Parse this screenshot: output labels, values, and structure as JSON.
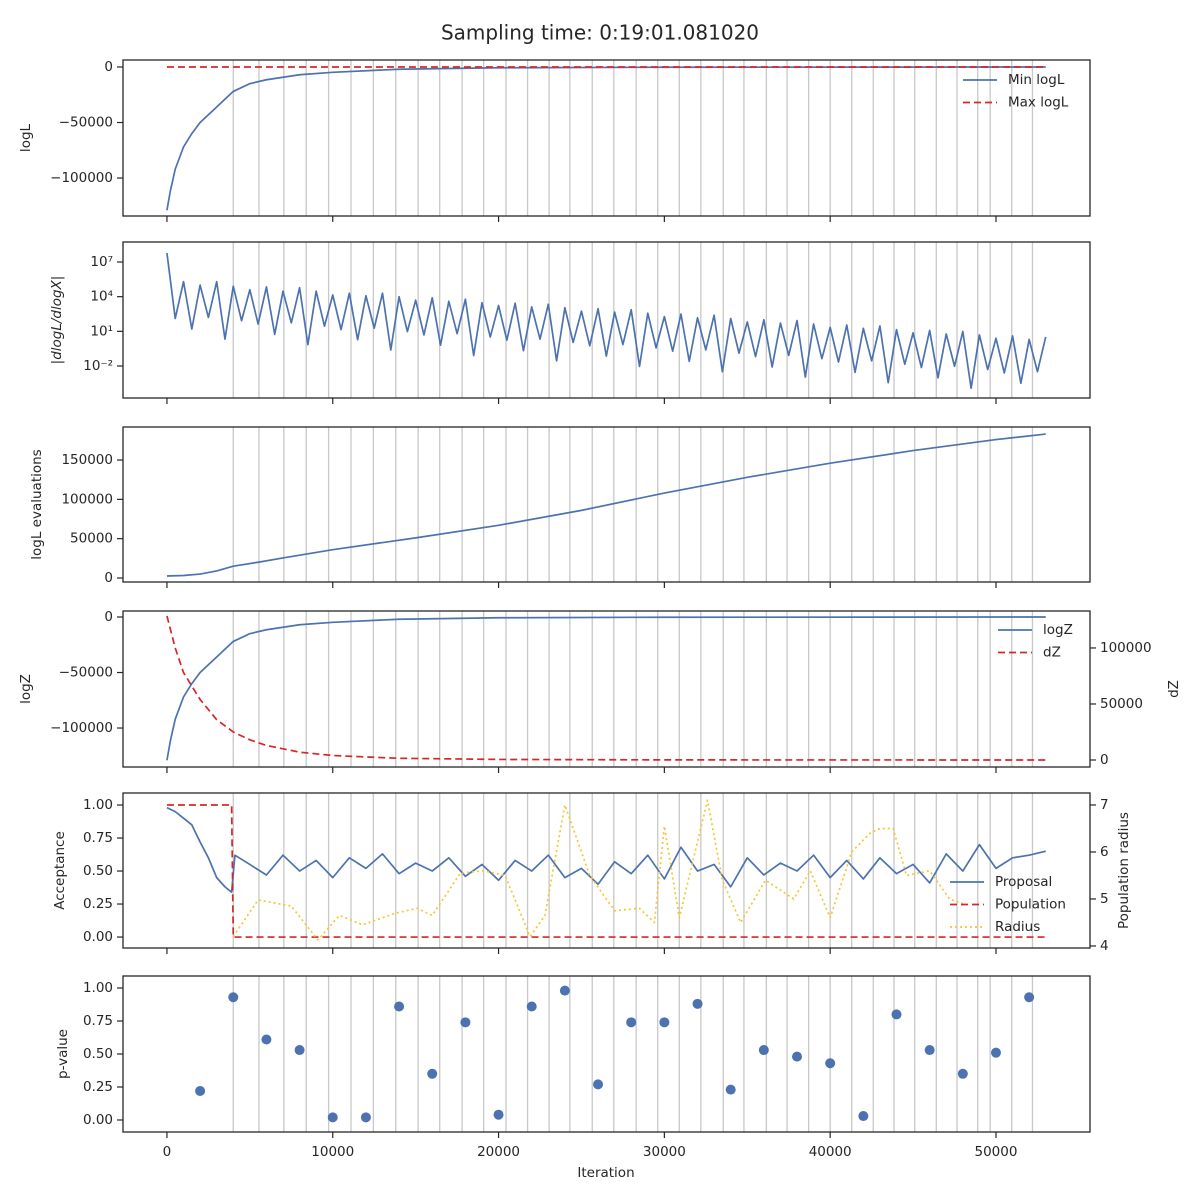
{
  "title": "Sampling time: 0:19:01.081020",
  "xlabel": "Iteration",
  "xlim": [
    -2650,
    55670
  ],
  "xticks": [
    0,
    10000,
    20000,
    30000,
    40000,
    50000
  ],
  "vlines": [
    4000,
    5550,
    7050,
    8400,
    9750,
    11100,
    12450,
    13800,
    15150,
    16450,
    17800,
    19100,
    20450,
    21750,
    23050,
    24300,
    25650,
    26950,
    28300,
    29600,
    30900,
    32200,
    33550,
    34800,
    36150,
    37400,
    38700,
    40000,
    41300,
    42600,
    43850,
    45100,
    46400,
    47650,
    48900,
    49650,
    50950,
    52200
  ],
  "chart_data": [
    {
      "type": "line",
      "ylabel": "logL",
      "ylim": [
        -134200,
        6300
      ],
      "yticks": [
        {
          "value": -100000,
          "label": "−100000"
        },
        {
          "value": -50000,
          "label": "−50000"
        },
        0
      ],
      "legend": "upper right",
      "series": [
        {
          "name": "Min logL",
          "color": "#4c72b0",
          "style": "solid",
          "x": [
            0,
            200,
            500,
            1000,
            1500,
            2000,
            3000,
            4000,
            5000,
            6000,
            8000,
            10000,
            14000,
            20000,
            30000,
            53000
          ],
          "values": [
            -129000,
            -112000,
            -92000,
            -72000,
            -60000,
            -50000,
            -36000,
            -22000,
            -15000,
            -11500,
            -7000,
            -4800,
            -2000,
            -700,
            -200,
            0
          ]
        },
        {
          "name": "Max logL",
          "color": "#d62728",
          "style": "dashed",
          "x": [
            0,
            53000
          ],
          "values": [
            0,
            0
          ]
        }
      ]
    },
    {
      "type": "line",
      "ylabel": "|dlogL/dlogX|",
      "log": true,
      "ylim": [
        1.7e-05,
        540000000
      ],
      "yticks": [
        {
          "value": 0.01,
          "label": "10⁻²"
        },
        {
          "value": 10,
          "label": "10¹"
        },
        {
          "value": 10000,
          "label": "10⁴"
        },
        {
          "value": 10000000,
          "label": "10⁷"
        }
      ],
      "series": [
        {
          "color": "#4c72b0",
          "style": "solid",
          "x": [
            0,
            500,
            1000,
            1500,
            2000,
            2500,
            3000,
            3500,
            4000,
            4500,
            5000,
            5500,
            6000,
            6500,
            7000,
            7500,
            8000,
            8500,
            9000,
            9500,
            10000,
            10500,
            11000,
            11500,
            12000,
            12500,
            13000,
            13500,
            14000,
            14500,
            15000,
            15500,
            16000,
            16500,
            17000,
            17500,
            18000,
            18500,
            19000,
            19500,
            20000,
            20500,
            21000,
            21500,
            22000,
            22500,
            23000,
            23500,
            24000,
            24500,
            25000,
            25500,
            26000,
            26500,
            27000,
            27500,
            28000,
            28500,
            29000,
            29500,
            30000,
            30500,
            31000,
            31500,
            32000,
            32500,
            33000,
            33500,
            34000,
            34500,
            35000,
            35500,
            36000,
            36500,
            37000,
            37500,
            38000,
            38500,
            39000,
            39500,
            40000,
            40500,
            41000,
            41500,
            42000,
            42500,
            43000,
            43500,
            44000,
            44500,
            45000,
            45500,
            46000,
            46500,
            47000,
            47500,
            48000,
            48500,
            49000,
            49500,
            50000,
            50500,
            51000,
            51500,
            52000,
            52500,
            53000
          ],
          "values": [
            60000000.0,
            130,
            200000.0,
            16,
            100000.0,
            160,
            200000.0,
            2.1,
            80000.0,
            83,
            40000.0,
            43,
            70000.0,
            5.5,
            30000.0,
            55,
            60000.0,
            0.7,
            30000.0,
            28,
            14000.0,
            14,
            20000.0,
            1.9,
            12000.0,
            19,
            20000.0,
            0.24,
            10000.0,
            9.5,
            5000.0,
            4.9,
            8000.0,
            0.63,
            4000.0,
            6.3,
            6000.0,
            0.081,
            3000.0,
            3.2,
            1700.0,
            1.7,
            2700.0,
            0.21,
            1300.0,
            2.1,
            2200.0,
            0.028,
            1100.0,
            1.1,
            560,
            0.56,
            900,
            0.072,
            460,
            0.72,
            740,
            0.0093,
            370,
            0.37,
            190,
            0.19,
            310,
            0.025,
            150,
            0.25,
            250,
            0.0032,
            130,
            0.13,
            65,
            0.065,
            100,
            0.0083,
            52,
            0.083,
            85,
            0.0011,
            43,
            0.043,
            22,
            0.022,
            35,
            0.0028,
            18,
            0.028,
            29,
            0.00036,
            14,
            0.014,
            7.4,
            0.0074,
            12,
            0.00095,
            6,
            0.0095,
            9.8,
            0.00012,
            4.9,
            0.0049,
            2.5,
            0.0025,
            4,
            0.00032,
            2,
            0.0032,
            3.3
          ]
        }
      ]
    },
    {
      "type": "line",
      "ylabel": "logL evaluations",
      "ylim": [
        -5100,
        192000
      ],
      "yticks": [
        0,
        50000,
        100000,
        150000
      ],
      "series": [
        {
          "color": "#4c72b0",
          "style": "solid",
          "x": [
            0,
            1000,
            2000,
            3000,
            4000,
            5500,
            7000,
            10000,
            15000,
            20000,
            25000,
            30000,
            35000,
            40000,
            45000,
            50000,
            53000
          ],
          "values": [
            2500,
            3200,
            5000,
            9000,
            15000,
            20000,
            25500,
            36000,
            51000,
            67000,
            86000,
            108000,
            128000,
            146000,
            162000,
            176000,
            183000
          ]
        }
      ]
    },
    {
      "type": "line",
      "ylabel": "logZ",
      "ylim": [
        -135100,
        5400
      ],
      "yticks": [
        {
          "value": -100000,
          "label": "−100000"
        },
        {
          "value": -50000,
          "label": "−50000"
        },
        0
      ],
      "y2label": "dZ",
      "y2lim": [
        -6250,
        133000
      ],
      "y2ticks": [
        0,
        50000,
        100000
      ],
      "legend": "upper right",
      "series": [
        {
          "name": "logZ",
          "color": "#4c72b0",
          "style": "solid",
          "x": [
            0,
            200,
            500,
            1000,
            1500,
            2000,
            3000,
            4000,
            5000,
            6000,
            8000,
            10000,
            14000,
            20000,
            30000,
            53000
          ],
          "values": [
            -129000,
            -112000,
            -92000,
            -72000,
            -60000,
            -50000,
            -36000,
            -22000,
            -15000,
            -11500,
            -7000,
            -4800,
            -2000,
            -700,
            -200,
            0
          ]
        },
        {
          "name": "dZ",
          "color": "#d62728",
          "style": "dashed",
          "axis": "y2",
          "x": [
            0,
            500,
            1000,
            2000,
            3000,
            4000,
            5000,
            6000,
            8000,
            10000,
            14000,
            20000,
            30000,
            53000
          ],
          "values": [
            128600,
            100000,
            78000,
            54000,
            36000,
            25000,
            18000,
            13000,
            7000,
            4000,
            1500,
            500,
            100,
            0
          ]
        }
      ]
    },
    {
      "type": "line",
      "ylabel": "Acceptance",
      "ylim": [
        -0.083,
        1.091
      ],
      "yticks": [
        {
          "value": 0,
          "label": "0.00"
        },
        {
          "value": 0.25,
          "label": "0.25"
        },
        {
          "value": 0.5,
          "label": "0.50"
        },
        {
          "value": 0.75,
          "label": "0.75"
        },
        {
          "value": 1,
          "label": "1.00"
        }
      ],
      "y2label": "Population radius",
      "y2lim": [
        3.957,
        7.255
      ],
      "y2ticks": [
        4,
        5,
        6,
        7
      ],
      "legend": "lower right",
      "series": [
        {
          "name": "Proposal",
          "color": "#4c72b0",
          "style": "solid",
          "x": [
            0,
            500,
            1000,
            1500,
            2000,
            2500,
            3000,
            3500,
            3900,
            4100,
            5000,
            6000,
            7000,
            8000,
            9000,
            10000,
            11000,
            12000,
            13000,
            14000,
            15000,
            16000,
            17000,
            18000,
            19000,
            20000,
            21000,
            22000,
            23000,
            24000,
            25000,
            26000,
            27000,
            28000,
            29000,
            30000,
            31000,
            32000,
            33000,
            34000,
            35000,
            36000,
            37000,
            38000,
            39000,
            40000,
            41000,
            42000,
            43000,
            44000,
            45000,
            46000,
            47000,
            48000,
            49000,
            50000,
            51000,
            52000,
            53000
          ],
          "values": [
            0.98,
            0.95,
            0.9,
            0.85,
            0.72,
            0.6,
            0.45,
            0.38,
            0.34,
            0.62,
            0.55,
            0.47,
            0.62,
            0.5,
            0.58,
            0.45,
            0.6,
            0.52,
            0.63,
            0.48,
            0.56,
            0.5,
            0.6,
            0.46,
            0.55,
            0.43,
            0.58,
            0.5,
            0.62,
            0.45,
            0.52,
            0.4,
            0.57,
            0.48,
            0.62,
            0.44,
            0.68,
            0.5,
            0.55,
            0.38,
            0.6,
            0.47,
            0.56,
            0.5,
            0.62,
            0.45,
            0.58,
            0.44,
            0.6,
            0.48,
            0.55,
            0.41,
            0.63,
            0.5,
            0.7,
            0.52,
            0.6,
            0.62,
            0.65
          ]
        },
        {
          "name": "Population",
          "color": "#d62728",
          "style": "dashed",
          "x": [
            0,
            3900,
            4000,
            53000
          ],
          "values": [
            1,
            1,
            0,
            0
          ]
        },
        {
          "name": "Radius",
          "color": "#f7c531",
          "style": "dotted",
          "axis": "y2",
          "x": [
            4000,
            5500,
            7500,
            9100,
            10400,
            11800,
            13800,
            15100,
            16000,
            17700,
            19100,
            20400,
            21900,
            22800,
            24000,
            25500,
            27000,
            28500,
            29400,
            30000,
            30900,
            32600,
            33500,
            34600,
            36100,
            37800,
            38800,
            40000,
            41300,
            42400,
            43000,
            43800,
            44600,
            46000,
            47200,
            48000
          ],
          "values": [
            4.2,
            4.98,
            4.85,
            4.13,
            4.65,
            4.45,
            4.7,
            4.8,
            4.65,
            5.55,
            5.6,
            5.5,
            4.2,
            4.65,
            7.0,
            5.5,
            4.75,
            4.8,
            4.5,
            6.55,
            4.6,
            7.1,
            5.4,
            4.5,
            5.4,
            5.0,
            5.6,
            4.6,
            6.0,
            6.4,
            6.5,
            6.5,
            5.5,
            5.6,
            5.0,
            4.9
          ]
        }
      ]
    },
    {
      "type": "scatter",
      "ylabel": "p-value",
      "ylim": [
        -0.091,
        1.091
      ],
      "yticks": [
        {
          "value": 0,
          "label": "0.00"
        },
        {
          "value": 0.25,
          "label": "0.25"
        },
        {
          "value": 0.5,
          "label": "0.50"
        },
        {
          "value": 0.75,
          "label": "0.75"
        },
        {
          "value": 1,
          "label": "1.00"
        }
      ],
      "series": [
        {
          "color": "#4c72b0",
          "x": [
            2000,
            4000,
            6000,
            8000,
            10000,
            12000,
            14000,
            16000,
            18000,
            20000,
            22000,
            24000,
            26000,
            28000,
            30000,
            32000,
            34000,
            36000,
            38000,
            40000,
            42000,
            44000,
            46000,
            48000,
            50000,
            52000
          ],
          "values": [
            0.22,
            0.93,
            0.61,
            0.53,
            0.02,
            0.02,
            0.86,
            0.35,
            0.74,
            0.04,
            0.86,
            0.98,
            0.27,
            0.74,
            0.74,
            0.88,
            0.23,
            0.53,
            0.48,
            0.43,
            0.03,
            0.8,
            0.53,
            0.35,
            0.51,
            0.93
          ]
        }
      ]
    }
  ]
}
